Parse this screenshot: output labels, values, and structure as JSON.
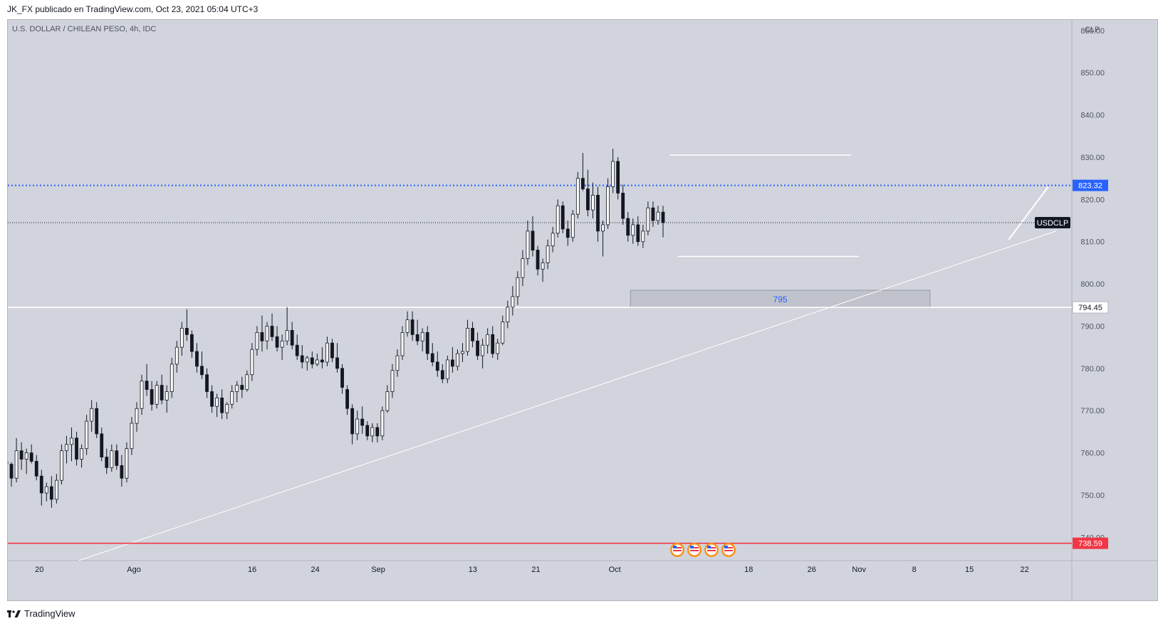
{
  "header": {
    "publisher_line": "JK_FX publicado en TradingView.com, Oct 23, 2021 05:04 UTC+3"
  },
  "footer": {
    "brand": "TradingView",
    "logo_icon": "tradingview-logo-icon"
  },
  "chart_data": {
    "type": "candlestick",
    "title": "U.S. DOLLAR / CHILEAN PESO, 4h, IDC",
    "currency_label": "CLP",
    "symbol_tag": "USDCLP",
    "ylim": [
      734.5,
      862.5
    ],
    "y_ticks": [
      "860.00",
      "850.00",
      "840.00",
      "830.00",
      "820.00",
      "810.00",
      "800.00",
      "790.00",
      "780.00",
      "770.00",
      "760.00",
      "750.00",
      "740.00"
    ],
    "y_tick_values": [
      860,
      850,
      840,
      830,
      820,
      810,
      800,
      790,
      780,
      770,
      760,
      750,
      740
    ],
    "x_ticks": [
      {
        "label": "20",
        "date": "2021-07-20"
      },
      {
        "label": "Ago",
        "date": "2021-08-01"
      },
      {
        "label": "16",
        "date": "2021-08-16"
      },
      {
        "label": "24",
        "date": "2021-08-24"
      },
      {
        "label": "Sep",
        "date": "2021-09-01"
      },
      {
        "label": "13",
        "date": "2021-09-13"
      },
      {
        "label": "21",
        "date": "2021-09-21"
      },
      {
        "label": "Oct",
        "date": "2021-10-01"
      },
      {
        "label": "18",
        "date": "2021-10-18"
      },
      {
        "label": "26",
        "date": "2021-10-26"
      },
      {
        "label": "Nov",
        "date": "2021-11-01"
      },
      {
        "label": "8",
        "date": "2021-11-08"
      },
      {
        "label": "15",
        "date": "2021-11-15"
      },
      {
        "label": "22",
        "date": "2021-11-22"
      }
    ],
    "price_labels": [
      {
        "value": 823.32,
        "text": "823.32",
        "color": "#2962ff",
        "line": "dotted"
      },
      {
        "value": 794.45,
        "text": "794.45",
        "color": "#ffffff",
        "line": "solid"
      },
      {
        "value": 738.59,
        "text": "738.59",
        "color": "#f23645",
        "line": "solid"
      }
    ],
    "current_price_line": 814.5,
    "zone": {
      "label": "795",
      "from": "2021-10-03",
      "to": "2021-11-10",
      "low": 794.5,
      "high": 798.5
    },
    "range_lines": [
      {
        "from": "2021-10-08",
        "to": "2021-10-31",
        "value": 830.5
      },
      {
        "from": "2021-10-09",
        "to": "2021-11-01",
        "value": 806.5
      }
    ],
    "trendline": {
      "from": {
        "date": "2021-07-25",
        "value": 734.5
      },
      "to": {
        "date": "2021-11-26",
        "value": 812.5
      }
    },
    "arrow": {
      "from": {
        "date": "2021-11-20",
        "value": 810.5
      },
      "to": {
        "date": "2021-11-25",
        "value": 823.0
      }
    },
    "candles_ohlc": [
      [
        757.9,
        758.1,
        757.0,
        757.3
      ],
      [
        757.3,
        757.8,
        752.0,
        754.0
      ],
      [
        754.0,
        763.5,
        753.0,
        760.5
      ],
      [
        760.5,
        762.5,
        756.0,
        758.5
      ],
      [
        758.5,
        761.0,
        755.0,
        760.0
      ],
      [
        760.0,
        762.0,
        757.5,
        758.0
      ],
      [
        758.0,
        759.5,
        753.5,
        754.5
      ],
      [
        754.5,
        756.0,
        747.5,
        750.5
      ],
      [
        750.5,
        753.0,
        748.5,
        752.0
      ],
      [
        752.0,
        754.5,
        747.0,
        749.0
      ],
      [
        749.0,
        755.0,
        748.0,
        753.5
      ],
      [
        753.5,
        762.0,
        752.5,
        760.5
      ],
      [
        760.5,
        764.0,
        757.5,
        762.0
      ],
      [
        762.0,
        766.0,
        758.0,
        763.5
      ],
      [
        763.5,
        765.0,
        757.0,
        758.5
      ],
      [
        758.5,
        762.0,
        756.5,
        761.0
      ],
      [
        761.0,
        769.0,
        759.5,
        767.5
      ],
      [
        767.5,
        772.5,
        765.0,
        770.5
      ],
      [
        770.5,
        772.0,
        763.5,
        764.5
      ],
      [
        764.5,
        766.0,
        758.0,
        759.0
      ],
      [
        759.0,
        761.0,
        755.0,
        756.5
      ],
      [
        756.5,
        762.0,
        755.5,
        760.5
      ],
      [
        760.5,
        762.0,
        756.0,
        757.0
      ],
      [
        757.0,
        759.5,
        752.0,
        754.0
      ],
      [
        754.0,
        762.5,
        753.0,
        761.0
      ],
      [
        761.0,
        768.5,
        759.5,
        767.0
      ],
      [
        767.0,
        772.0,
        765.0,
        770.5
      ],
      [
        770.5,
        778.5,
        769.0,
        777.0
      ],
      [
        777.0,
        781.0,
        773.5,
        775.0
      ],
      [
        775.0,
        777.0,
        770.0,
        771.5
      ],
      [
        771.5,
        777.0,
        770.5,
        776.0
      ],
      [
        776.0,
        778.5,
        771.5,
        772.5
      ],
      [
        772.5,
        776.0,
        769.5,
        774.5
      ],
      [
        774.5,
        782.5,
        773.0,
        781.0
      ],
      [
        781.0,
        786.5,
        779.0,
        785.0
      ],
      [
        785.0,
        791.0,
        783.0,
        789.5
      ],
      [
        789.5,
        794.0,
        786.5,
        788.0
      ],
      [
        788.0,
        789.0,
        782.5,
        784.0
      ],
      [
        784.0,
        786.0,
        779.0,
        780.5
      ],
      [
        780.5,
        784.0,
        777.5,
        778.5
      ],
      [
        778.5,
        780.0,
        773.0,
        774.5
      ],
      [
        774.5,
        776.0,
        769.5,
        771.0
      ],
      [
        771.0,
        774.0,
        768.5,
        773.0
      ],
      [
        773.0,
        775.0,
        768.0,
        769.5
      ],
      [
        769.5,
        772.0,
        768.0,
        771.5
      ],
      [
        771.5,
        776.0,
        770.5,
        774.5
      ],
      [
        774.5,
        777.0,
        772.0,
        776.0
      ],
      [
        776.0,
        778.0,
        773.0,
        775.0
      ],
      [
        775.0,
        779.5,
        774.5,
        778.5
      ],
      [
        778.5,
        786.0,
        777.0,
        784.5
      ],
      [
        784.5,
        790.0,
        783.0,
        788.5
      ],
      [
        788.5,
        792.5,
        784.0,
        786.5
      ],
      [
        786.5,
        791.0,
        784.5,
        790.0
      ],
      [
        790.0,
        793.0,
        786.5,
        787.5
      ],
      [
        787.5,
        790.0,
        784.0,
        785.0
      ],
      [
        785.0,
        788.0,
        782.0,
        786.5
      ],
      [
        786.5,
        794.5,
        785.5,
        789.0
      ],
      [
        789.0,
        791.0,
        784.5,
        785.5
      ],
      [
        785.5,
        788.0,
        782.0,
        783.0
      ],
      [
        783.0,
        785.5,
        780.0,
        781.5
      ],
      [
        781.5,
        783.0,
        779.5,
        782.5
      ],
      [
        782.5,
        784.0,
        780.0,
        781.0
      ],
      [
        781.0,
        783.5,
        780.5,
        782.0
      ],
      [
        782.0,
        785.0,
        780.0,
        781.5
      ],
      [
        781.5,
        787.5,
        780.5,
        786.0
      ],
      [
        786.0,
        787.0,
        781.5,
        782.5
      ],
      [
        782.5,
        786.0,
        779.0,
        780.0
      ],
      [
        780.0,
        781.0,
        774.0,
        775.5
      ],
      [
        775.0,
        776.0,
        769.0,
        770.5
      ],
      [
        770.5,
        771.5,
        762.0,
        764.5
      ],
      [
        764.5,
        770.0,
        763.0,
        768.0
      ],
      [
        768.0,
        771.0,
        764.5,
        766.5
      ],
      [
        766.5,
        767.5,
        763.0,
        764.0
      ],
      [
        764.0,
        767.0,
        762.5,
        766.0
      ],
      [
        766.0,
        767.0,
        762.5,
        764.0
      ],
      [
        764.0,
        771.0,
        763.0,
        770.0
      ],
      [
        770.0,
        776.0,
        769.5,
        774.5
      ],
      [
        774.5,
        781.0,
        773.0,
        779.5
      ],
      [
        779.5,
        784.5,
        778.0,
        783.0
      ],
      [
        783.0,
        790.0,
        782.0,
        788.5
      ],
      [
        788.5,
        793.5,
        787.5,
        791.5
      ],
      [
        791.5,
        793.5,
        786.5,
        788.0
      ],
      [
        788.0,
        791.5,
        785.5,
        786.5
      ],
      [
        786.5,
        789.5,
        784.0,
        788.5
      ],
      [
        788.5,
        790.0,
        782.0,
        783.5
      ],
      [
        783.5,
        786.0,
        780.5,
        781.5
      ],
      [
        781.5,
        784.0,
        778.0,
        779.5
      ],
      [
        779.5,
        781.0,
        776.5,
        777.5
      ],
      [
        777.5,
        783.0,
        776.5,
        782.0
      ],
      [
        782.0,
        785.0,
        779.0,
        780.5
      ],
      [
        780.5,
        784.5,
        779.5,
        783.5
      ],
      [
        783.5,
        786.0,
        781.5,
        784.0
      ],
      [
        784.0,
        791.5,
        783.0,
        789.5
      ],
      [
        789.5,
        791.0,
        785.0,
        786.5
      ],
      [
        786.5,
        788.5,
        782.0,
        783.0
      ],
      [
        783.0,
        787.0,
        780.0,
        785.5
      ],
      [
        785.5,
        789.5,
        783.5,
        788.0
      ],
      [
        788.0,
        790.0,
        782.5,
        783.5
      ],
      [
        783.5,
        787.0,
        782.0,
        786.0
      ],
      [
        786.0,
        792.5,
        785.5,
        791.0
      ],
      [
        791.0,
        796.0,
        789.5,
        794.5
      ],
      [
        794.5,
        799.5,
        792.5,
        797.0
      ],
      [
        797.0,
        803.0,
        795.0,
        801.5
      ],
      [
        801.5,
        808.0,
        799.5,
        806.0
      ],
      [
        806.0,
        815.0,
        804.5,
        812.5
      ],
      [
        812.5,
        816.0,
        806.5,
        808.0
      ],
      [
        808.0,
        809.0,
        802.0,
        803.5
      ],
      [
        803.5,
        806.0,
        800.5,
        805.0
      ],
      [
        805.0,
        810.5,
        803.5,
        809.0
      ],
      [
        809.0,
        813.5,
        807.5,
        812.0
      ],
      [
        812.0,
        820.0,
        811.0,
        818.5
      ],
      [
        818.5,
        819.5,
        812.0,
        813.0
      ],
      [
        813.0,
        815.0,
        809.0,
        811.0
      ],
      [
        811.0,
        817.5,
        810.0,
        816.5
      ],
      [
        816.5,
        826.5,
        815.5,
        825.0
      ],
      [
        825.0,
        831.0,
        822.0,
        822.5
      ],
      [
        822.5,
        827.0,
        816.0,
        817.5
      ],
      [
        817.5,
        824.0,
        815.5,
        821.0
      ],
      [
        821.0,
        823.0,
        810.0,
        812.5
      ],
      [
        812.5,
        815.0,
        806.5,
        814.0
      ],
      [
        814.0,
        825.0,
        813.0,
        823.0
      ],
      [
        823.0,
        832.0,
        821.5,
        829.0
      ],
      [
        829.0,
        830.0,
        820.0,
        821.5
      ],
      [
        821.5,
        823.5,
        814.0,
        815.5
      ],
      [
        815.5,
        817.0,
        810.0,
        811.5
      ],
      [
        811.5,
        815.5,
        809.5,
        814.0
      ],
      [
        814.0,
        816.0,
        809.0,
        810.0
      ],
      [
        810.0,
        814.0,
        808.5,
        812.5
      ],
      [
        812.5,
        819.5,
        811.5,
        818.0
      ],
      [
        818.0,
        819.5,
        813.5,
        815.0
      ],
      [
        815.0,
        818.5,
        814.0,
        817.0
      ],
      [
        817.0,
        818.5,
        811.0,
        814.5
      ]
    ]
  }
}
